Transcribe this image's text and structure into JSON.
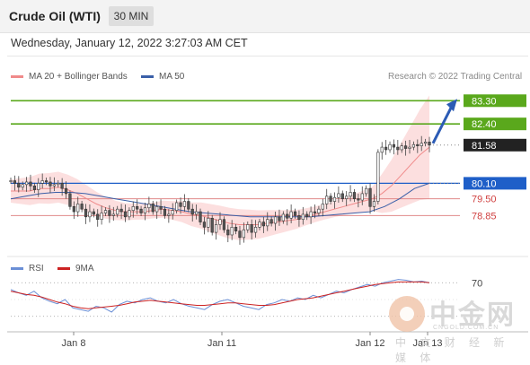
{
  "header": {
    "title": "Crude Oil (WTI)",
    "timeframe": "30 MIN"
  },
  "datetime": "Wednesday, January 12, 2022 3:27:03 AM CET",
  "legend": {
    "items": [
      {
        "label": "MA 20 + Bollinger Bands",
        "color": "#f08a8a"
      },
      {
        "label": "MA 50",
        "color": "#3a5fa8"
      }
    ],
    "credit": "Research © 2022 Trading Central"
  },
  "rsi_legend": {
    "items": [
      {
        "label": "RSI",
        "color": "#6b8fd6"
      },
      {
        "label": "9MA",
        "color": "#cc2222"
      }
    ]
  },
  "watermark": {
    "main": "中金网",
    "url": "CNGOLD.COM.CN",
    "sub": "中 文 财 经 新 媒 体"
  },
  "colors": {
    "target": "#5aa81c",
    "pivot": "#1f5fc8",
    "support": "#d04040",
    "last": "#222222",
    "bbfill": "#fbd9d9"
  },
  "chart_data": [
    {
      "type": "candlestick",
      "title": "Crude Oil (WTI)",
      "xlabel": "",
      "ylabel": "",
      "x_ticks": [
        "Jan 8",
        "Jan 11",
        "Jan 12",
        "Jan 13"
      ],
      "ylim": [
        77.3,
        83.9
      ],
      "grid": false,
      "levels": [
        {
          "kind": "target",
          "value": 83.3,
          "label": "83.30"
        },
        {
          "kind": "target",
          "value": 82.4,
          "label": "82.40"
        },
        {
          "kind": "last",
          "value": 81.58,
          "label": "81.58"
        },
        {
          "kind": "pivot",
          "value": 80.1,
          "label": "80.10"
        },
        {
          "kind": "support",
          "value": 79.5,
          "label": "79.50"
        },
        {
          "kind": "support",
          "value": 78.85,
          "label": "78.85"
        }
      ],
      "close": [
        80.2,
        80.1,
        79.95,
        80.05,
        80.15,
        80.0,
        79.85,
        80.1,
        80.2,
        80.15,
        80.0,
        80.05,
        80.1,
        79.9,
        79.7,
        79.2,
        79.0,
        79.3,
        79.1,
        78.8,
        79.0,
        78.9,
        78.7,
        78.95,
        79.05,
        78.85,
        78.9,
        79.1,
        79.0,
        78.8,
        79.05,
        79.2,
        79.1,
        78.95,
        79.15,
        79.3,
        79.0,
        79.2,
        79.1,
        78.85,
        78.9,
        79.05,
        79.35,
        79.2,
        79.4,
        79.1,
        78.9,
        79.0,
        78.6,
        78.4,
        78.75,
        78.2,
        78.5,
        78.7,
        78.3,
        78.1,
        78.4,
        78.25,
        78.0,
        78.3,
        78.5,
        78.2,
        78.4,
        78.6,
        78.45,
        78.7,
        78.55,
        78.8,
        78.65,
        78.9,
        78.75,
        79.0,
        78.85,
        78.7,
        78.9,
        78.8,
        79.0,
        78.95,
        79.1,
        79.3,
        79.6,
        79.4,
        79.55,
        79.7,
        79.5,
        79.6,
        79.75,
        79.5,
        79.45,
        79.7,
        79.9,
        79.2,
        79.4,
        81.3,
        81.5,
        81.4,
        81.6,
        81.5,
        81.4,
        81.55,
        81.45,
        81.5,
        81.6,
        81.55,
        81.65,
        81.7,
        81.58
      ],
      "ma20": [
        79.8,
        79.8,
        79.8,
        79.9,
        79.9,
        79.95,
        79.85,
        79.7,
        79.5,
        79.3,
        79.15,
        79.05,
        79.0,
        79.0,
        79.0,
        79.05,
        79.1,
        79.05,
        79.0,
        78.9,
        78.85,
        78.75,
        78.65,
        78.55,
        78.5,
        78.5,
        78.5,
        78.55,
        78.6,
        78.65,
        78.7,
        78.8,
        78.9,
        79.0,
        79.1,
        79.2,
        79.3,
        79.4,
        79.5,
        79.7,
        80.0,
        80.4,
        80.8,
        81.2,
        81.5
      ],
      "ma50": [
        79.5,
        79.6,
        79.7,
        79.75,
        79.75,
        79.7,
        79.6,
        79.5,
        79.4,
        79.3,
        79.2,
        79.1,
        79.0,
        78.95,
        78.9,
        78.85,
        78.8,
        78.8,
        78.8,
        78.8,
        78.8,
        78.85,
        78.9,
        78.95,
        79.0,
        79.2,
        79.5,
        79.9,
        80.1
      ]
    },
    {
      "type": "line",
      "title": "",
      "series": [
        {
          "name": "RSI"
        },
        {
          "name": "9MA"
        }
      ],
      "levels": [
        {
          "value": 70,
          "label": "70"
        }
      ],
      "ylim": [
        20,
        80
      ],
      "rsi": [
        62,
        58,
        55,
        60,
        52,
        48,
        45,
        50,
        40,
        38,
        36,
        42,
        40,
        35,
        44,
        48,
        46,
        50,
        52,
        48,
        46,
        50,
        45,
        42,
        40,
        38,
        44,
        48,
        50,
        46,
        42,
        40,
        38,
        44,
        46,
        50,
        48,
        52,
        50,
        55,
        52,
        56,
        60,
        58,
        62,
        65,
        68,
        66,
        70,
        72,
        74,
        73,
        71,
        72,
        70
      ],
      "ma9": [
        60,
        58,
        56,
        55,
        53,
        50,
        47,
        45,
        42,
        40,
        39,
        40,
        41,
        42,
        43,
        45,
        47,
        48,
        49,
        48,
        47,
        46,
        45,
        44,
        43,
        43,
        44,
        45,
        46,
        46,
        45,
        44,
        43,
        43,
        44,
        46,
        48,
        50,
        51,
        52,
        54,
        56,
        58,
        60,
        62,
        64,
        66,
        68,
        69,
        70,
        71,
        71,
        71,
        71,
        70
      ]
    }
  ]
}
